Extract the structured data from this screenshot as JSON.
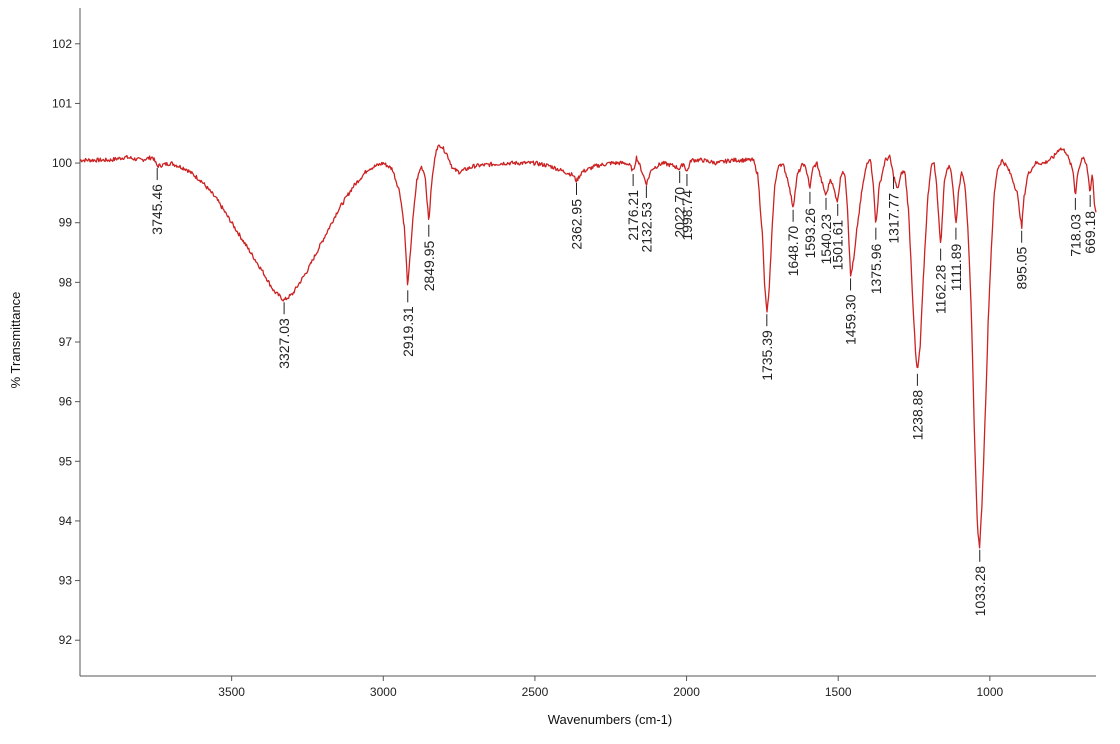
{
  "chart_data": {
    "type": "line",
    "xlabel": "Wavenumbers (cm-1)",
    "ylabel": "% Transmittance",
    "xlim": [
      4000,
      650
    ],
    "ylim": [
      91.4,
      102.6
    ],
    "x_axis_reversed": true,
    "x_ticks": [
      3500,
      3000,
      2500,
      2000,
      1500,
      1000
    ],
    "y_ticks": [
      92,
      93,
      94,
      95,
      96,
      97,
      98,
      99,
      100,
      101,
      102
    ],
    "grid": false,
    "line_color": "#cc2222",
    "spectrum": [
      [
        4000,
        100.05
      ],
      [
        3900,
        100.05
      ],
      [
        3850,
        100.1
      ],
      [
        3800,
        100.05
      ],
      [
        3760,
        100.1
      ],
      [
        3745.46,
        99.95
      ],
      [
        3700,
        100.0
      ],
      [
        3650,
        99.9
      ],
      [
        3600,
        99.7
      ],
      [
        3550,
        99.4
      ],
      [
        3500,
        99.0
      ],
      [
        3450,
        98.6
      ],
      [
        3400,
        98.2
      ],
      [
        3360,
        97.85
      ],
      [
        3327.03,
        97.7
      ],
      [
        3300,
        97.8
      ],
      [
        3250,
        98.2
      ],
      [
        3200,
        98.7
      ],
      [
        3150,
        99.2
      ],
      [
        3100,
        99.6
      ],
      [
        3050,
        99.9
      ],
      [
        3000,
        100.0
      ],
      [
        2970,
        99.9
      ],
      [
        2945,
        99.5
      ],
      [
        2930,
        98.9
      ],
      [
        2919.31,
        97.9
      ],
      [
        2905,
        98.9
      ],
      [
        2890,
        99.7
      ],
      [
        2875,
        99.95
      ],
      [
        2862,
        99.8
      ],
      [
        2849.95,
        99.0
      ],
      [
        2840,
        99.7
      ],
      [
        2825,
        100.25
      ],
      [
        2810,
        100.3
      ],
      [
        2790,
        100.15
      ],
      [
        2770,
        99.9
      ],
      [
        2750,
        99.85
      ],
      [
        2700,
        99.95
      ],
      [
        2600,
        100.0
      ],
      [
        2500,
        100.0
      ],
      [
        2450,
        99.95
      ],
      [
        2400,
        99.85
      ],
      [
        2375,
        99.8
      ],
      [
        2362.95,
        99.7
      ],
      [
        2345,
        99.85
      ],
      [
        2300,
        99.95
      ],
      [
        2250,
        100.0
      ],
      [
        2200,
        100.0
      ],
      [
        2185,
        99.95
      ],
      [
        2176.21,
        99.85
      ],
      [
        2165,
        100.1
      ],
      [
        2150,
        99.9
      ],
      [
        2132.53,
        99.65
      ],
      [
        2115,
        99.9
      ],
      [
        2080,
        100.0
      ],
      [
        2040,
        99.95
      ],
      [
        2022.7,
        99.9
      ],
      [
        2010,
        100.0
      ],
      [
        1998.74,
        99.85
      ],
      [
        1985,
        100.05
      ],
      [
        1950,
        100.05
      ],
      [
        1900,
        100.0
      ],
      [
        1850,
        100.05
      ],
      [
        1800,
        100.05
      ],
      [
        1780,
        100.05
      ],
      [
        1765,
        99.8
      ],
      [
        1750,
        98.8
      ],
      [
        1742,
        97.9
      ],
      [
        1735.39,
        97.5
      ],
      [
        1728,
        97.8
      ],
      [
        1720,
        98.7
      ],
      [
        1710,
        99.6
      ],
      [
        1695,
        100.0
      ],
      [
        1680,
        99.95
      ],
      [
        1665,
        99.7
      ],
      [
        1648.7,
        99.25
      ],
      [
        1635,
        99.8
      ],
      [
        1615,
        100.0
      ],
      [
        1600,
        99.8
      ],
      [
        1593.26,
        99.55
      ],
      [
        1585,
        99.9
      ],
      [
        1570,
        100.0
      ],
      [
        1555,
        99.7
      ],
      [
        1540.23,
        99.45
      ],
      [
        1525,
        99.75
      ],
      [
        1511,
        99.5
      ],
      [
        1501.61,
        99.35
      ],
      [
        1492,
        99.8
      ],
      [
        1478,
        99.85
      ],
      [
        1470,
        99.3
      ],
      [
        1459.3,
        98.1
      ],
      [
        1448,
        98.4
      ],
      [
        1438,
        98.9
      ],
      [
        1420,
        99.6
      ],
      [
        1405,
        100.0
      ],
      [
        1395,
        100.1
      ],
      [
        1385,
        99.7
      ],
      [
        1375.96,
        98.95
      ],
      [
        1365,
        99.6
      ],
      [
        1345,
        100.05
      ],
      [
        1330,
        100.1
      ],
      [
        1317.77,
        99.8
      ],
      [
        1305,
        99.55
      ],
      [
        1290,
        99.85
      ],
      [
        1280,
        99.85
      ],
      [
        1268,
        99.2
      ],
      [
        1255,
        97.8
      ],
      [
        1245,
        96.8
      ],
      [
        1238.88,
        96.5
      ],
      [
        1230,
        96.9
      ],
      [
        1218,
        98.2
      ],
      [
        1205,
        99.4
      ],
      [
        1195,
        99.9
      ],
      [
        1185,
        100.05
      ],
      [
        1175,
        99.6
      ],
      [
        1162.28,
        98.6
      ],
      [
        1150,
        99.7
      ],
      [
        1140,
        99.95
      ],
      [
        1128,
        99.9
      ],
      [
        1120,
        99.5
      ],
      [
        1111.89,
        98.95
      ],
      [
        1102,
        99.6
      ],
      [
        1092,
        99.85
      ],
      [
        1082,
        99.65
      ],
      [
        1072,
        98.9
      ],
      [
        1060,
        97.3
      ],
      [
        1050,
        95.3
      ],
      [
        1040,
        93.8
      ],
      [
        1033.28,
        93.55
      ],
      [
        1025,
        94.4
      ],
      [
        1015,
        95.8
      ],
      [
        1005,
        97.4
      ],
      [
        995,
        98.6
      ],
      [
        985,
        99.5
      ],
      [
        975,
        99.9
      ],
      [
        960,
        100.05
      ],
      [
        945,
        99.95
      ],
      [
        930,
        99.8
      ],
      [
        910,
        99.5
      ],
      [
        902,
        99.2
      ],
      [
        895.05,
        98.9
      ],
      [
        888,
        99.4
      ],
      [
        875,
        99.8
      ],
      [
        850,
        100.0
      ],
      [
        820,
        100.0
      ],
      [
        790,
        100.1
      ],
      [
        770,
        100.25
      ],
      [
        750,
        100.2
      ],
      [
        735,
        100.0
      ],
      [
        725,
        99.85
      ],
      [
        718.03,
        99.45
      ],
      [
        710,
        99.85
      ],
      [
        695,
        100.1
      ],
      [
        680,
        99.95
      ],
      [
        669.18,
        99.5
      ],
      [
        662,
        99.85
      ],
      [
        655,
        99.3
      ],
      [
        650,
        99.2
      ]
    ],
    "peaks": [
      {
        "label": "3745.46",
        "x": 3745.46
      },
      {
        "label": "3327.03",
        "x": 3327.03
      },
      {
        "label": "2919.31",
        "x": 2919.31
      },
      {
        "label": "2849.95",
        "x": 2849.95
      },
      {
        "label": "2362.95",
        "x": 2362.95
      },
      {
        "label": "2176.21",
        "x": 2176.21
      },
      {
        "label": "2132.53",
        "x": 2132.53
      },
      {
        "label": "2022.70",
        "x": 2022.7
      },
      {
        "label": "1998.74",
        "x": 1998.74
      },
      {
        "label": "1735.39",
        "x": 1735.39
      },
      {
        "label": "1648.70",
        "x": 1648.7
      },
      {
        "label": "1593.26",
        "x": 1593.26
      },
      {
        "label": "1540.23",
        "x": 1540.23
      },
      {
        "label": "1501.61",
        "x": 1501.61
      },
      {
        "label": "1459.30",
        "x": 1459.3
      },
      {
        "label": "1375.96",
        "x": 1375.96
      },
      {
        "label": "1317.77",
        "x": 1317.77
      },
      {
        "label": "1238.88",
        "x": 1238.88
      },
      {
        "label": "1162.28",
        "x": 1162.28
      },
      {
        "label": "1111.89",
        "x": 1111.89
      },
      {
        "label": "1033.28",
        "x": 1033.28
      },
      {
        "label": "895.05",
        "x": 895.05
      },
      {
        "label": "718.03",
        "x": 718.03
      },
      {
        "label": "669.18",
        "x": 669.18
      }
    ]
  }
}
